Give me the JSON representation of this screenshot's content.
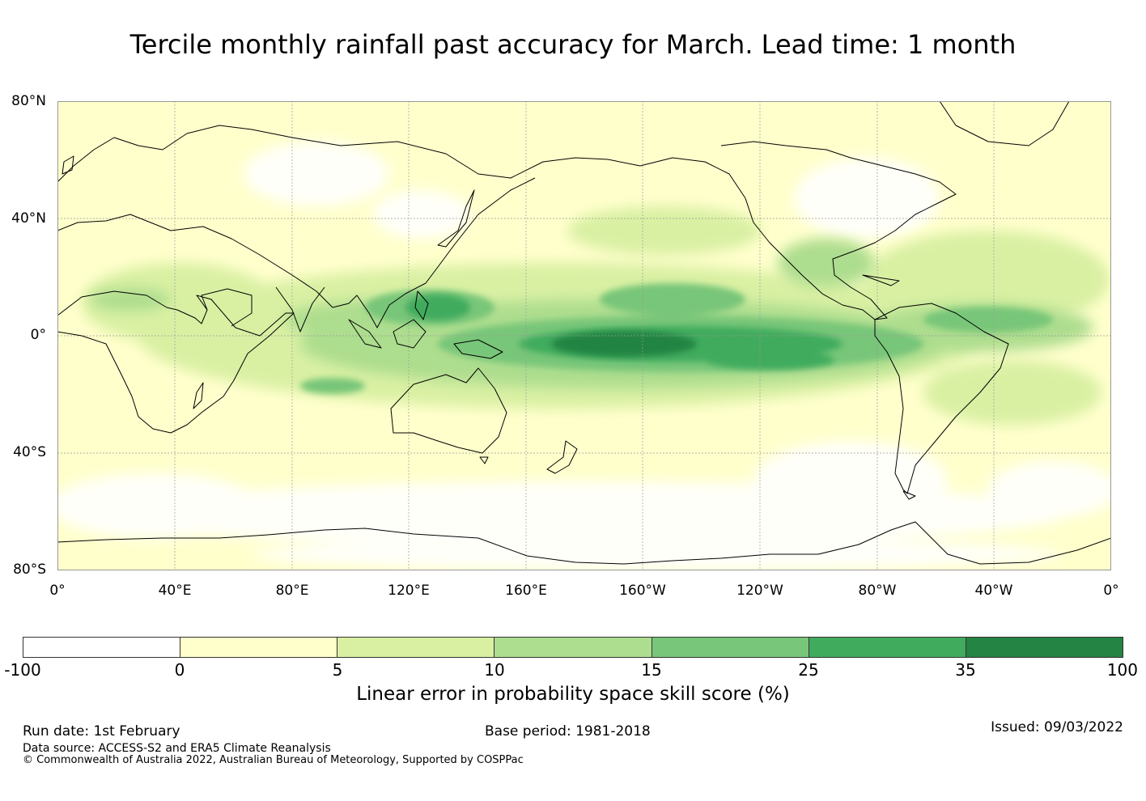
{
  "title": "Tercile monthly rainfall past accuracy for March. Lead time: 1 month",
  "map": {
    "lat_labels": [
      "80°N",
      "40°N",
      "0°",
      "40°S",
      "80°S"
    ],
    "lon_labels": [
      "0°",
      "40°E",
      "80°E",
      "120°E",
      "160°E",
      "160°W",
      "120°W",
      "80°W",
      "40°W",
      "0°"
    ]
  },
  "legend": {
    "colors": [
      "#ffffff",
      "#ffffcc",
      "#d9f0a3",
      "#addd8e",
      "#78c679",
      "#41ab5d",
      "#238443"
    ],
    "ticks": [
      "-100",
      "0",
      "5",
      "10",
      "15",
      "25",
      "35",
      "100"
    ],
    "label": "Linear error in probability space skill score (%)"
  },
  "footer": {
    "run_date": "Run date: 1st February",
    "base_period": "Base period: 1981-2018",
    "issued": "Issued: 09/03/2022",
    "data_source": "Data source: ACCESS-S2 and ERA5 Climate Reanalysis",
    "copyright": "© Commonwealth of Australia 2022, Australian Bureau of Meteorology, Supported by COSPPac"
  }
}
